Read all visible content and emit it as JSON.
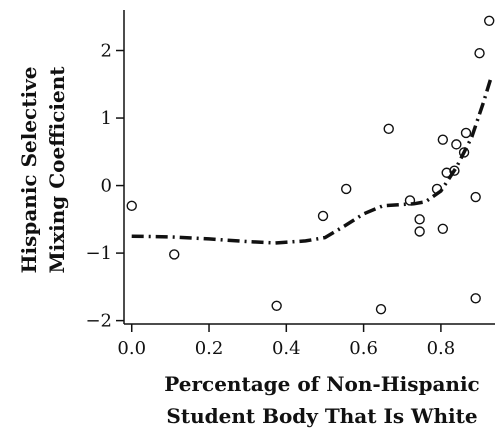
{
  "chart_data": {
    "type": "scatter",
    "title": "",
    "xlabel_lines": [
      "Percentage of Non-Hispanic",
      "Student Body That Is White"
    ],
    "ylabel_lines": [
      "Hispanic Selective",
      "Mixing Coefficient"
    ],
    "xlim": [
      -0.02,
      0.94
    ],
    "ylim": [
      -2.05,
      2.6
    ],
    "x_ticks": [
      0.0,
      0.2,
      0.4,
      0.6,
      0.8
    ],
    "x_tick_labels": [
      "0.0",
      "0.2",
      "0.4",
      "0.6",
      "0.8"
    ],
    "y_ticks": [
      2,
      1,
      0,
      -1,
      -2
    ],
    "y_tick_labels": [
      "2",
      "1",
      "0",
      "−1",
      "−2"
    ],
    "grid": false,
    "points": [
      {
        "x": 0.0,
        "y": -0.3
      },
      {
        "x": 0.11,
        "y": -1.02
      },
      {
        "x": 0.375,
        "y": -1.78
      },
      {
        "x": 0.495,
        "y": -0.45
      },
      {
        "x": 0.555,
        "y": -0.05
      },
      {
        "x": 0.645,
        "y": -1.83
      },
      {
        "x": 0.665,
        "y": 0.84
      },
      {
        "x": 0.72,
        "y": -0.22
      },
      {
        "x": 0.745,
        "y": -0.5
      },
      {
        "x": 0.745,
        "y": -0.68
      },
      {
        "x": 0.79,
        "y": -0.05
      },
      {
        "x": 0.805,
        "y": 0.68
      },
      {
        "x": 0.805,
        "y": -0.64
      },
      {
        "x": 0.815,
        "y": 0.19
      },
      {
        "x": 0.835,
        "y": 0.22
      },
      {
        "x": 0.84,
        "y": 0.61
      },
      {
        "x": 0.86,
        "y": 0.49
      },
      {
        "x": 0.865,
        "y": 0.78
      },
      {
        "x": 0.89,
        "y": -0.17
      },
      {
        "x": 0.89,
        "y": -1.67
      },
      {
        "x": 0.9,
        "y": 1.96
      },
      {
        "x": 0.925,
        "y": 2.44
      }
    ],
    "smooth_line": {
      "style": "dash-dot",
      "x": [
        0.0,
        0.1,
        0.2,
        0.3,
        0.37,
        0.45,
        0.5,
        0.55,
        0.6,
        0.65,
        0.7,
        0.73,
        0.76,
        0.8,
        0.84,
        0.88,
        0.91,
        0.93
      ],
      "y": [
        -0.75,
        -0.76,
        -0.79,
        -0.83,
        -0.85,
        -0.82,
        -0.77,
        -0.6,
        -0.42,
        -0.3,
        -0.28,
        -0.27,
        -0.24,
        -0.08,
        0.27,
        0.72,
        1.23,
        1.6
      ]
    }
  }
}
